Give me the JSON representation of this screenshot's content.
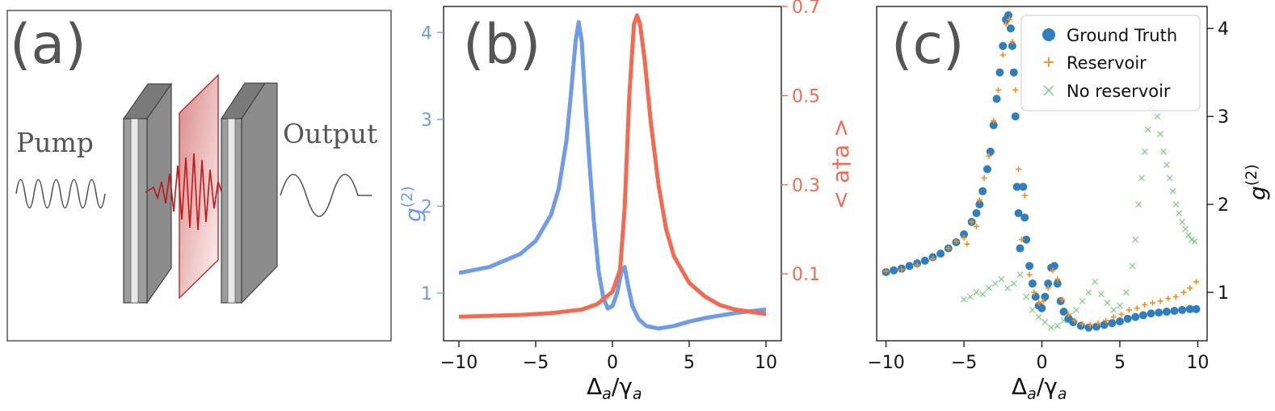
{
  "colors": {
    "blue": "#6F9BE8",
    "red": "#F26A50",
    "gt": "#2F7FBF",
    "reservoir": "#FF8C1A",
    "noreservoir": "#6CC46C"
  },
  "panel_a": {
    "letter": "(a)",
    "pump_label": "Pump",
    "output_label": "Output"
  },
  "panel_b": {
    "letter": "(b)",
    "xlabel_main": "Δ",
    "xlabel_sub1": "a",
    "xlabel_slash": "/γ",
    "xlabel_sub2": "a",
    "ylabel_left": "g",
    "ylabel_left_sup": "(2)",
    "ylabel_right": "< a†a >"
  },
  "panel_c": {
    "letter": "(c)",
    "xlabel_main": "Δ",
    "xlabel_sub1": "a",
    "xlabel_slash": "/γ",
    "xlabel_sub2": "a",
    "ylabel_right": "g",
    "ylabel_right_sup": "(2)",
    "legend": [
      "Ground Truth",
      "Reservoir",
      "No reservoir"
    ]
  },
  "chart_data": [
    {
      "type": "line",
      "panel": "b",
      "xlim": [
        -11,
        11
      ],
      "ylim_left": [
        0.45,
        4.3
      ],
      "ylim_right": [
        -0.05,
        0.7
      ],
      "xticks": [
        -10,
        -5,
        0,
        5,
        10
      ],
      "xtick_labels": [
        "−10",
        "−5",
        "0",
        "5",
        "10"
      ],
      "yticks_left": [
        1,
        2,
        3,
        4
      ],
      "ytick_labels_left": [
        "1",
        "2",
        "3",
        "4"
      ],
      "yticks_right": [
        0.1,
        0.3,
        0.5,
        0.7
      ],
      "ytick_labels_right": [
        "0.1",
        "0.3",
        "0.5",
        "0.7"
      ],
      "series": [
        {
          "name": "g(2)",
          "axis": "left",
          "x": [
            -10,
            -8,
            -6,
            -5,
            -4,
            -3.5,
            -3,
            -2.7,
            -2.4,
            -2.2,
            -2.0,
            -1.8,
            -1.5,
            -1.2,
            -0.9,
            -0.6,
            -0.3,
            0,
            0.3,
            0.6,
            0.8,
            1.0,
            1.3,
            1.7,
            2.2,
            3.0,
            4.0,
            5.0,
            6.0,
            7.0,
            8.0,
            9.0,
            10.0
          ],
          "y": [
            1.23,
            1.3,
            1.45,
            1.6,
            1.9,
            2.2,
            2.75,
            3.3,
            3.9,
            4.12,
            3.9,
            3.3,
            2.5,
            1.8,
            1.25,
            0.95,
            0.82,
            0.85,
            1.0,
            1.25,
            1.3,
            1.1,
            0.85,
            0.7,
            0.62,
            0.59,
            0.62,
            0.67,
            0.71,
            0.74,
            0.77,
            0.79,
            0.81
          ]
        },
        {
          "name": "<a†a>",
          "axis": "right",
          "x": [
            -10,
            -8,
            -6,
            -4,
            -2,
            -1,
            0,
            0.5,
            0.8,
            1.1,
            1.4,
            1.6,
            1.8,
            2.1,
            2.5,
            3.0,
            3.5,
            4,
            5,
            6,
            7,
            8,
            10
          ],
          "y": [
            0.004,
            0.006,
            0.008,
            0.012,
            0.02,
            0.032,
            0.06,
            0.11,
            0.25,
            0.5,
            0.66,
            0.68,
            0.66,
            0.58,
            0.44,
            0.3,
            0.2,
            0.14,
            0.08,
            0.05,
            0.03,
            0.02,
            0.01
          ]
        }
      ]
    },
    {
      "type": "scatter",
      "panel": "c",
      "xlim": [
        -10.6,
        10.6
      ],
      "ylim": [
        0.45,
        4.25
      ],
      "xticks": [
        -10,
        -5,
        0,
        5,
        10
      ],
      "xtick_labels": [
        "−10",
        "−5",
        "0",
        "5",
        "10"
      ],
      "yticks": [
        1,
        2,
        3,
        4
      ],
      "ytick_labels": [
        "1",
        "2",
        "3",
        "4"
      ],
      "legend_position": "top-right",
      "series": [
        {
          "name": "Ground Truth",
          "marker": "circle",
          "x": [
            -10,
            -9.5,
            -9,
            -8.5,
            -8,
            -7.5,
            -7,
            -6.5,
            -6,
            -5.5,
            -5,
            -4.5,
            -4.2,
            -4,
            -3.8,
            -3.5,
            -3.3,
            -3.1,
            -2.9,
            -2.7,
            -2.5,
            -2.3,
            -2.15,
            -2.0,
            -1.9,
            -1.8,
            -1.7,
            -1.6,
            -1.5,
            -1.4,
            -1.2,
            -1.1,
            -1.0,
            -0.8,
            -0.6,
            -0.4,
            -0.2,
            0,
            0.2,
            0.4,
            0.6,
            0.8,
            1.0,
            1.2,
            1.4,
            1.7,
            2.0,
            2.5,
            3.0,
            3.5,
            4.0,
            4.5,
            5.0,
            5.5,
            6.0,
            6.5,
            7.0,
            7.5,
            8.0,
            8.5,
            9.0,
            9.5,
            9.9
          ],
          "y": [
            1.23,
            1.25,
            1.27,
            1.3,
            1.33,
            1.36,
            1.4,
            1.44,
            1.5,
            1.57,
            1.66,
            1.8,
            1.9,
            2.0,
            2.15,
            2.4,
            2.6,
            2.9,
            3.2,
            3.5,
            3.8,
            4.1,
            4.15,
            4.0,
            3.8,
            3.5,
            3.0,
            2.2,
            1.9,
            1.5,
            2.2,
            1.85,
            1.6,
            1.3,
            1.1,
            0.95,
            0.85,
            0.82,
            0.95,
            1.1,
            1.28,
            1.3,
            1.1,
            0.9,
            0.78,
            0.7,
            0.66,
            0.62,
            0.6,
            0.61,
            0.63,
            0.65,
            0.67,
            0.7,
            0.72,
            0.74,
            0.76,
            0.77,
            0.78,
            0.79,
            0.8,
            0.81,
            0.81
          ]
        },
        {
          "name": "Reservoir",
          "marker": "plus",
          "x": [
            -10,
            -9,
            -8,
            -7,
            -6,
            -5.5,
            -5,
            -4.8,
            -4.5,
            -4.2,
            -4,
            -3.7,
            -3.4,
            -3.1,
            -2.8,
            -2.5,
            -2.3,
            -2.1,
            -1.9,
            -1.7,
            -1.5,
            -1.3,
            -1.1,
            -0.8,
            -0.5,
            -0.2,
            0.1,
            0.4,
            0.7,
            1.0,
            1.3,
            1.7,
            2.1,
            2.6,
            3.1,
            3.6,
            4.1,
            4.6,
            5.1,
            5.6,
            6.1,
            6.6,
            7.1,
            7.6,
            8.1,
            8.6,
            9.1,
            9.5,
            9.9
          ],
          "y": [
            1.24,
            1.26,
            1.31,
            1.38,
            1.5,
            1.58,
            1.62,
            1.55,
            1.8,
            1.75,
            2.05,
            2.3,
            2.55,
            2.95,
            3.3,
            3.7,
            4.05,
            4.1,
            3.85,
            3.3,
            2.4,
            1.6,
            2.1,
            1.2,
            1.0,
            0.88,
            0.9,
            1.05,
            1.25,
            1.15,
            0.92,
            0.75,
            0.68,
            0.64,
            0.63,
            0.65,
            0.68,
            0.72,
            0.75,
            0.8,
            0.82,
            0.86,
            0.88,
            0.9,
            0.93,
            0.95,
            1.0,
            1.05,
            1.12
          ]
        },
        {
          "name": "No reservoir",
          "marker": "x",
          "x": [
            -5,
            -4.6,
            -4.2,
            -3.8,
            -3.4,
            -3.0,
            -2.6,
            -2.2,
            -1.8,
            -1.4,
            -1.0,
            -0.6,
            -0.2,
            0.2,
            0.6,
            1.0,
            1.4,
            1.8,
            2.2,
            2.6,
            3.0,
            3.4,
            3.8,
            4.2,
            4.6,
            5.0,
            5.4,
            5.8,
            6.0,
            6.2,
            6.4,
            6.6,
            6.8,
            7.0,
            7.2,
            7.4,
            7.6,
            7.8,
            8.0,
            8.2,
            8.4,
            8.6,
            8.8,
            9.0,
            9.2,
            9.4,
            9.6,
            9.8
          ],
          "y": [
            0.92,
            0.95,
            1.0,
            0.98,
            1.05,
            1.1,
            1.15,
            1.05,
            1.1,
            1.2,
            0.95,
            0.8,
            0.72,
            0.66,
            0.6,
            0.62,
            0.68,
            0.74,
            0.8,
            0.9,
            1.0,
            1.12,
            0.98,
            0.88,
            0.8,
            0.85,
            1.0,
            1.3,
            1.6,
            2.0,
            2.3,
            2.6,
            2.85,
            3.1,
            3.2,
            3.0,
            2.8,
            2.6,
            2.45,
            2.3,
            2.15,
            2.0,
            1.9,
            1.8,
            1.72,
            1.65,
            1.6,
            1.58
          ]
        }
      ]
    }
  ]
}
